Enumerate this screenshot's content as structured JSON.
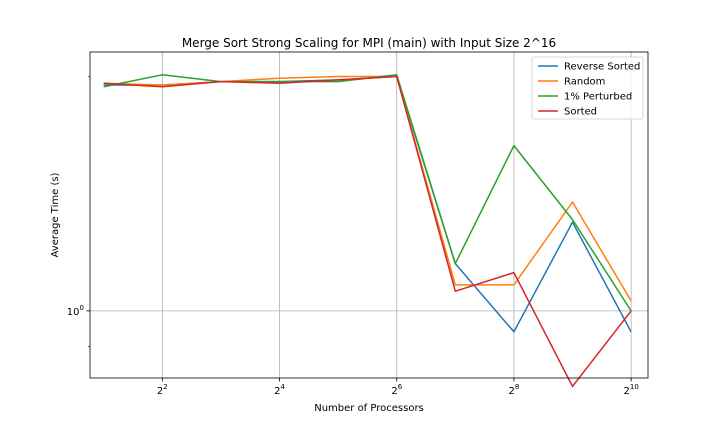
{
  "chart_data": {
    "type": "line",
    "title": "Merge Sort Strong Scaling for MPI (main) with Input Size 2^16",
    "xlabel": "Number of Processors",
    "ylabel": "Average Time (s)",
    "x_scale": "log2",
    "y_scale": "log10",
    "x": [
      2,
      4,
      8,
      16,
      32,
      64,
      128,
      256,
      512,
      1024
    ],
    "xlim": [
      1.7,
      1250
    ],
    "ylim": [
      0.82,
      2.15
    ],
    "x_ticks": [
      {
        "value": 4,
        "base": "2",
        "exp": "2"
      },
      {
        "value": 16,
        "base": "2",
        "exp": "4"
      },
      {
        "value": 64,
        "base": "2",
        "exp": "6"
      },
      {
        "value": 256,
        "base": "2",
        "exp": "8"
      },
      {
        "value": 1024,
        "base": "2",
        "exp": "10"
      }
    ],
    "y_ticks": [
      {
        "value": 1.0,
        "base": "10",
        "exp": "0"
      }
    ],
    "grid": true,
    "legend_position": "top-right",
    "series": [
      {
        "name": "Reverse Sorted",
        "color": "#1f77b4",
        "values": [
          1.95,
          1.95,
          1.97,
          1.97,
          1.98,
          2.0,
          1.15,
          0.94,
          1.3,
          0.94
        ]
      },
      {
        "name": "Random",
        "color": "#ff7f0e",
        "values": [
          1.96,
          1.95,
          1.97,
          1.99,
          2.0,
          2.0,
          1.08,
          1.08,
          1.38,
          1.03
        ]
      },
      {
        "name": "1% Perturbed",
        "color": "#2ca02c",
        "values": [
          1.94,
          2.01,
          1.97,
          1.97,
          1.97,
          2.01,
          1.15,
          1.63,
          1.31,
          1.0
        ]
      },
      {
        "name": "Sorted",
        "color": "#d62728",
        "values": [
          1.96,
          1.94,
          1.97,
          1.96,
          1.98,
          2.0,
          1.06,
          1.12,
          0.8,
          1.0
        ]
      }
    ]
  }
}
